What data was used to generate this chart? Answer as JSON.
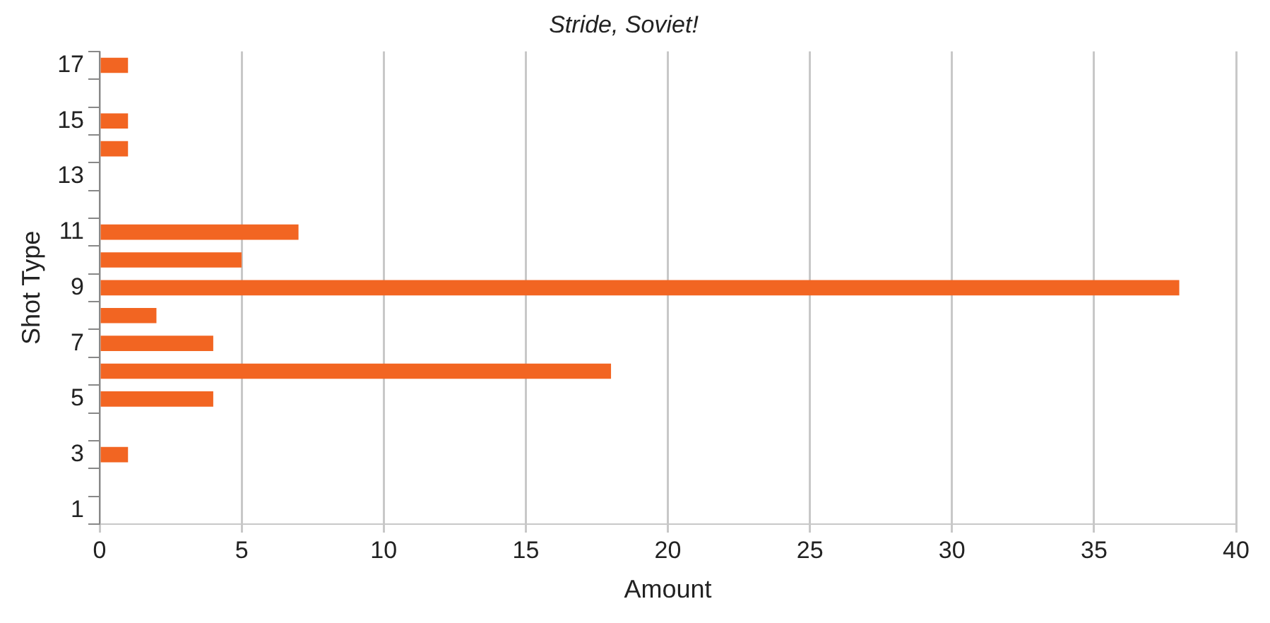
{
  "chart_data": {
    "type": "bar",
    "orientation": "horizontal",
    "title": "Stride, Soviet!",
    "xlabel": "Amount",
    "ylabel": "Shot Type",
    "categories": [
      "17",
      null,
      "15",
      null,
      "13",
      null,
      "11",
      null,
      "9",
      null,
      "7",
      null,
      "5",
      null,
      "3",
      null,
      "1"
    ],
    "values": [
      1,
      null,
      1,
      1,
      null,
      null,
      7,
      5,
      38,
      2,
      4,
      18,
      4,
      null,
      1,
      null,
      null
    ],
    "color": "#f26522",
    "xlim": [
      0,
      40
    ],
    "xticks": [
      0,
      5,
      10,
      15,
      20,
      25,
      30,
      35,
      40
    ],
    "grid": "x",
    "legend": false
  }
}
